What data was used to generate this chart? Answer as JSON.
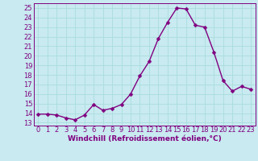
{
  "x": [
    0,
    1,
    2,
    3,
    4,
    5,
    6,
    7,
    8,
    9,
    10,
    11,
    12,
    13,
    14,
    15,
    16,
    17,
    18,
    19,
    20,
    21,
    22,
    23
  ],
  "y": [
    13.9,
    13.9,
    13.8,
    13.5,
    13.3,
    13.8,
    14.9,
    14.3,
    14.5,
    14.9,
    16.0,
    17.9,
    19.4,
    21.8,
    23.5,
    25.0,
    24.9,
    23.2,
    23.0,
    20.4,
    17.4,
    16.3,
    16.8,
    16.5
  ],
  "line_color": "#800080",
  "marker_color": "#800080",
  "bg_color": "#c8eaf0",
  "grid_color": "#aadddd",
  "xlabel": "Windchill (Refroidissement éolien,°C)",
  "ylabel_ticks": [
    13,
    14,
    15,
    16,
    17,
    18,
    19,
    20,
    21,
    22,
    23,
    24,
    25
  ],
  "ylim": [
    12.7,
    25.5
  ],
  "xlim": [
    -0.5,
    23.5
  ],
  "tick_fontsize": 6,
  "xlabel_fontsize": 6.5,
  "line_width": 1.0,
  "marker_size": 2.5
}
